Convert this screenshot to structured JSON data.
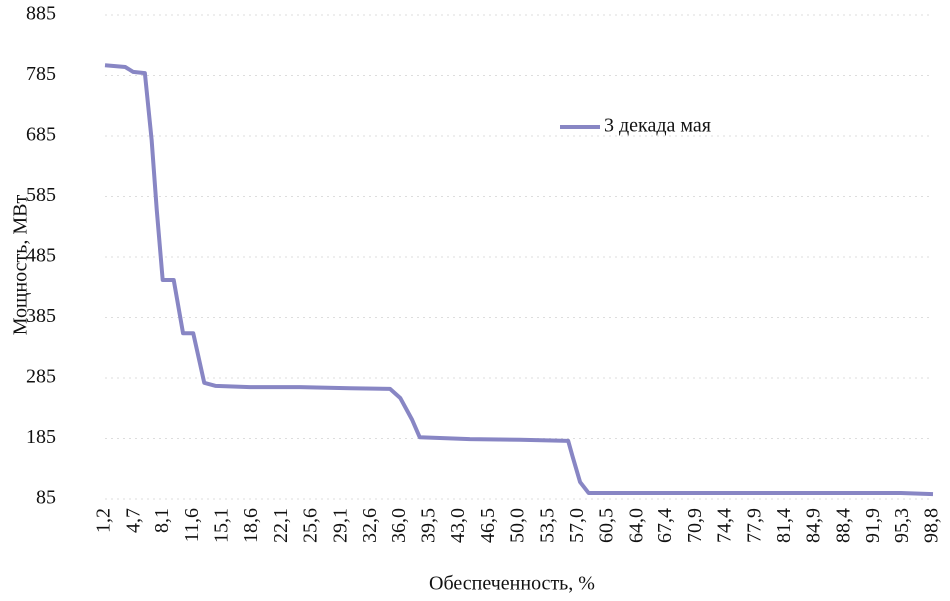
{
  "chart_data": {
    "type": "line",
    "x_label": "Обеспеченность, %",
    "y_label": "Мощность, МВт",
    "x": [
      1.2,
      3.6,
      4.5,
      5.9,
      6.7,
      7.3,
      8.0,
      9.3,
      10.4,
      11.6,
      12.9,
      14.2,
      18.3,
      24.2,
      30.1,
      34.8,
      36.0,
      37.4,
      38.3,
      44.2,
      50.1,
      55.8,
      56.3,
      57.2,
      58.2,
      71.4,
      95.0,
      98.8
    ],
    "series": [
      {
        "name": "3 декада мая",
        "color": "#8886c4",
        "values": [
          802,
          799,
          791,
          789,
          678,
          563,
          447,
          447,
          359,
          359,
          277,
          272,
          270,
          270,
          268,
          267,
          252,
          216,
          187,
          184,
          183,
          181,
          156,
          113,
          95,
          95,
          95,
          93
        ]
      }
    ],
    "xlim": [
      1.2,
      98.8
    ],
    "xticks": [
      {
        "value": 1.2,
        "label": "1,2"
      },
      {
        "value": 4.7,
        "label": "4,7"
      },
      {
        "value": 8.1,
        "label": "8,1"
      },
      {
        "value": 11.6,
        "label": "11,6"
      },
      {
        "value": 15.1,
        "label": "15,1"
      },
      {
        "value": 18.6,
        "label": "18,6"
      },
      {
        "value": 22.1,
        "label": "22,1"
      },
      {
        "value": 25.6,
        "label": "25,6"
      },
      {
        "value": 29.1,
        "label": "29,1"
      },
      {
        "value": 32.6,
        "label": "32,6"
      },
      {
        "value": 36.0,
        "label": "36,0"
      },
      {
        "value": 39.5,
        "label": "39,5"
      },
      {
        "value": 43.0,
        "label": "43,0"
      },
      {
        "value": 46.5,
        "label": "46,5"
      },
      {
        "value": 50.0,
        "label": "50,0"
      },
      {
        "value": 53.5,
        "label": "53,5"
      },
      {
        "value": 57.0,
        "label": "57,0"
      },
      {
        "value": 60.5,
        "label": "60,5"
      },
      {
        "value": 64.0,
        "label": "64,0"
      },
      {
        "value": 67.4,
        "label": "67,4"
      },
      {
        "value": 70.9,
        "label": "70,9"
      },
      {
        "value": 74.4,
        "label": "74,4"
      },
      {
        "value": 77.9,
        "label": "77,9"
      },
      {
        "value": 81.4,
        "label": "81,4"
      },
      {
        "value": 84.9,
        "label": "84,9"
      },
      {
        "value": 88.4,
        "label": "88,4"
      },
      {
        "value": 91.9,
        "label": "91,9"
      },
      {
        "value": 95.3,
        "label": "95,3"
      },
      {
        "value": 98.8,
        "label": "98,8"
      }
    ],
    "ylim": [
      85,
      885
    ],
    "yticks": [
      85,
      185,
      285,
      385,
      485,
      585,
      685,
      785,
      885
    ],
    "grid": true,
    "legend": "upper right"
  }
}
